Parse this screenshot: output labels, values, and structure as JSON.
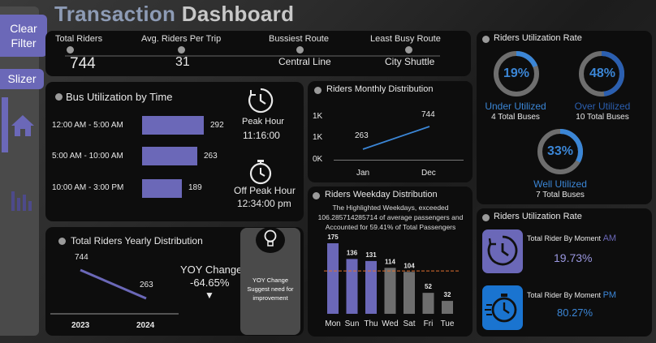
{
  "title": {
    "part1": "Transaction",
    "part2": "Dashboard"
  },
  "sidebar": {
    "clear_filter": "Clear Filter",
    "slizer": "Slizer"
  },
  "kpis": [
    {
      "label": "Total Riders",
      "value": "744"
    },
    {
      "label": "Avg. Riders Per Trip",
      "value": "31"
    },
    {
      "label": "Bussiest Route",
      "value": "Central Line"
    },
    {
      "label": "Least Busy Route",
      "value": "City Shuttle"
    }
  ],
  "bus_utilization": {
    "title": "Bus Utilization by Time",
    "rows": [
      {
        "label": "12:00 AM - 5:00 AM",
        "value": 292
      },
      {
        "label": "5:00 AM - 10:00 AM",
        "value": 263
      },
      {
        "label": "10:00 AM - 3:00 PM",
        "value": 189
      }
    ],
    "peak_label": "Peak Hour",
    "peak_time": "11:16:00",
    "offpeak_label": "Off Peak Hour",
    "offpeak_time": "12:34:00 pm"
  },
  "monthly": {
    "title": "Riders Monthly Distribution",
    "y_ticks": [
      "1K",
      "1K",
      "0K"
    ],
    "x": [
      "Jan",
      "Dec"
    ],
    "values": [
      263,
      744
    ],
    "value_labels": [
      "263",
      "744"
    ]
  },
  "weekday": {
    "title": "Riders Weekday Distribution",
    "note": "The Highlighted Weekdays, exceeded 106.285714285714 of average passengers and Accounted for 59.41% of Total Passengers",
    "days": [
      "Mon",
      "Sun",
      "Thu",
      "Wed",
      "Sat",
      "Fri",
      "Tue"
    ],
    "values": [
      175,
      136,
      131,
      114,
      104,
      52,
      32
    ],
    "value_labels": [
      "175",
      "136",
      "131",
      "114",
      "104",
      "52",
      "32"
    ],
    "highlighted": [
      true,
      true,
      true,
      false,
      false,
      false,
      false
    ],
    "average": 106.29,
    "color_highlight": "#6b68b8",
    "color_normal": "#6e6e6e"
  },
  "yearly": {
    "title": "Total Riders Yearly Distribution",
    "x": [
      "2023",
      "2024"
    ],
    "values": [
      744,
      263
    ],
    "value_labels": [
      "744",
      "263"
    ],
    "yoy_label": "YOY Change",
    "yoy_value": "-64.65%",
    "arrow": "▼",
    "note": "YOY Change Suggest need for improvement"
  },
  "utilization_rate": {
    "title": "Riders Utilization Rate",
    "rings": [
      {
        "pct": "19%",
        "fraction": 0.19,
        "label": "Under Utilized",
        "sub": "4 Total Buses"
      },
      {
        "pct": "48%",
        "fraction": 0.48,
        "label": "Over Utilized",
        "sub": "10 Total Buses"
      },
      {
        "pct": "33%",
        "fraction": 0.33,
        "label": "Well Utilized",
        "sub": "7 Total Buses"
      }
    ]
  },
  "moment": {
    "title": "Riders Utilization Rate",
    "am_label": "Total  Rider By Moment",
    "am_tag": "AM",
    "am_value": "19.73%",
    "pm_label": "Total  Rider By Moment",
    "pm_tag": "PM",
    "pm_value": "80.27%"
  },
  "colors": {
    "accent": "#6b68b8",
    "blue": "#3b86d6",
    "panel": "#0d0d0d"
  }
}
